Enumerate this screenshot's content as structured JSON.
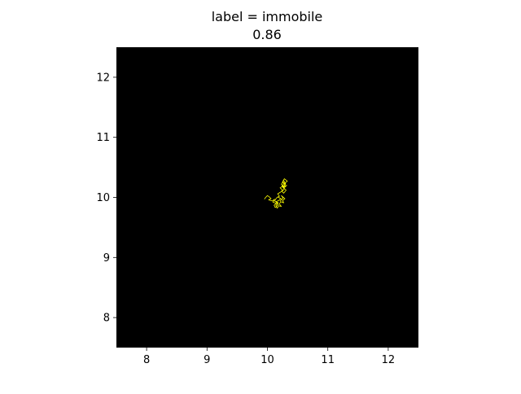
{
  "chart_data": {
    "type": "line",
    "title_lines": [
      "label = immobile",
      "0.86"
    ],
    "xlabel": "",
    "ylabel": "",
    "xlim": [
      7.5,
      12.5
    ],
    "ylim": [
      7.5,
      12.5
    ],
    "xticks": [
      8,
      9,
      10,
      11,
      12
    ],
    "yticks": [
      8,
      9,
      10,
      11,
      12
    ],
    "xtick_labels": [
      "8",
      "9",
      "10",
      "11",
      "12"
    ],
    "ytick_labels": [
      "8",
      "9",
      "10",
      "11",
      "12"
    ],
    "grid": false,
    "background_color": "#000000",
    "series": [
      {
        "color": "#ffff00",
        "x": [
          9.95,
          9.97,
          10.0,
          10.03,
          10.06,
          10.02,
          10.08,
          10.12,
          10.09,
          10.15,
          10.11,
          10.13,
          10.18,
          10.14,
          10.19,
          10.22,
          10.17,
          10.24,
          10.21,
          10.26,
          10.23,
          10.29,
          10.25,
          10.27,
          10.22,
          10.2,
          10.23,
          10.19,
          10.16,
          10.14,
          10.18,
          10.12,
          10.15,
          10.2,
          10.17,
          10.22,
          10.25,
          10.21,
          10.26,
          10.28,
          10.24,
          10.27,
          10.31,
          10.26,
          10.29,
          10.25,
          10.3,
          10.27,
          10.23,
          10.28,
          10.32,
          10.27,
          10.24,
          10.29,
          10.33,
          10.28,
          10.25,
          10.3,
          10.27
        ],
        "y": [
          9.97,
          10.0,
          10.03,
          10.01,
          9.98,
          9.96,
          9.94,
          9.97,
          9.92,
          9.9,
          9.87,
          9.83,
          9.88,
          9.93,
          9.95,
          9.98,
          10.01,
          9.97,
          9.94,
          9.99,
          10.03,
          9.98,
          9.95,
          9.91,
          9.93,
          9.89,
          9.85,
          9.86,
          9.82,
          9.87,
          9.91,
          9.94,
          9.99,
          10.02,
          10.06,
          10.09,
          10.12,
          10.16,
          10.19,
          10.14,
          10.1,
          10.07,
          10.12,
          10.17,
          10.21,
          10.25,
          10.23,
          10.28,
          10.22,
          10.18,
          10.2,
          10.15,
          10.19,
          10.24,
          10.27,
          10.31,
          10.26,
          10.22,
          10.17
        ]
      }
    ]
  }
}
